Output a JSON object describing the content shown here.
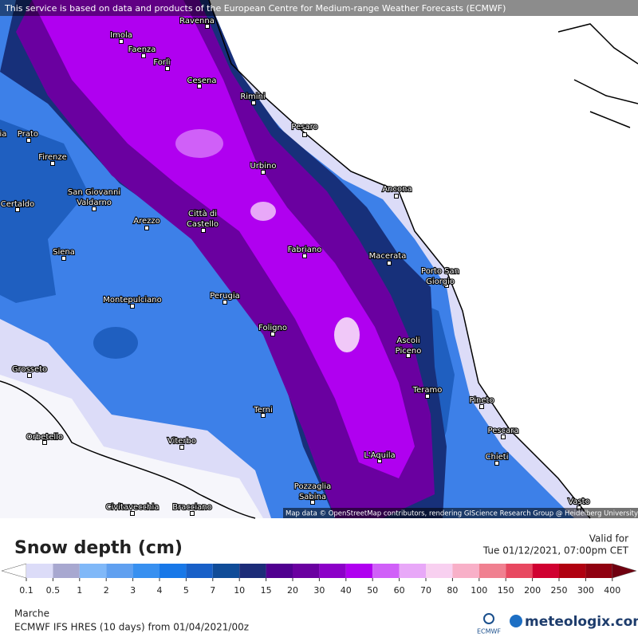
{
  "header": {
    "notice": "This service is based on data and products of the European Centre for Medium-range Weather Forecasts (ECMWF)"
  },
  "cities": [
    [
      "Ravenna"
    ],
    [
      "Imola"
    ],
    [
      "Faenza"
    ],
    [
      "Forlì"
    ],
    [
      "Cesena"
    ],
    [
      "Rimini"
    ],
    [
      "Pesaro"
    ],
    [
      "Urbino"
    ],
    [
      "Ancona"
    ],
    [
      "Firenze"
    ],
    [
      "Prato"
    ],
    [
      "Pistoia"
    ],
    [
      "San Giovanni",
      "Valdarno"
    ],
    [
      "Arezzo"
    ],
    [
      "Città di",
      "Castello"
    ],
    [
      "Siena"
    ],
    [
      "Certaldo"
    ],
    [
      "Fabriano"
    ],
    [
      "Macerata"
    ],
    [
      "Porto San",
      "Giorgio"
    ],
    [
      "Montepulciano"
    ],
    [
      "Perugia"
    ],
    [
      "Foligno"
    ],
    [
      "Ascoli",
      "Piceno"
    ],
    [
      "Grosseto"
    ],
    [
      "Teramo"
    ],
    [
      "Pineto"
    ],
    [
      "Terni"
    ],
    [
      "Orbetello"
    ],
    [
      "Viterbo"
    ],
    [
      "Pescara"
    ],
    [
      "L'Aquila"
    ],
    [
      "Chieti"
    ],
    [
      "Pozzaglia",
      "Sabina"
    ],
    [
      "Civitavecchia"
    ],
    [
      "Bracciano"
    ],
    [
      "Vasto"
    ]
  ],
  "attribution": "Map data © OpenStreetMap contributors, rendering GIScience Research Group @ Heidelberg University",
  "legend": {
    "title": "Snow depth (cm)",
    "valid_label": "Valid for",
    "valid_time": "Tue 01/12/2021, 07:00pm CET",
    "labels": [
      0.1,
      0.5,
      1,
      2,
      3,
      4,
      5,
      7,
      10,
      15,
      20,
      30,
      40,
      50,
      60,
      70,
      80,
      100,
      150,
      200,
      250,
      300,
      400
    ],
    "colors": [
      "#ffffff",
      "#dcdcf8",
      "#a8a8d0",
      "#80b8f8",
      "#60a0f0",
      "#3890f0",
      "#1878e8",
      "#1860c8",
      "#104c98",
      "#1c2c78",
      "#500090",
      "#6a00a0",
      "#8c00c8",
      "#b000f0",
      "#d060f8",
      "#e8a8f8",
      "#f8d0f0",
      "#f8b0c8",
      "#f08090",
      "#e84860",
      "#d00030",
      "#b00010",
      "#900010",
      "#700010"
    ]
  },
  "footer": {
    "region": "Marche",
    "model": "ECMWF IFS HRES (10 days) from 01/04/2021/00z",
    "ecmwf": "ECMWF",
    "brand": "meteologix.com"
  }
}
